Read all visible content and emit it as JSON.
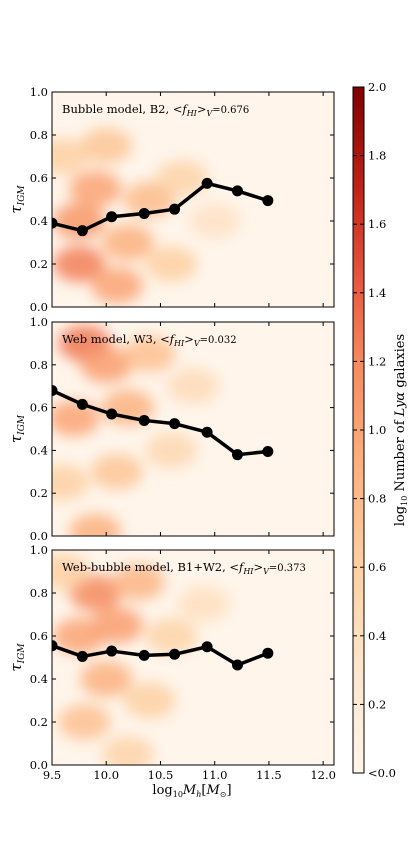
{
  "figure": {
    "xlabel": "log10Mh[M⊙]",
    "colorbar_label": "log10 Number of Lyα galaxies",
    "colorbar_ticks": [
      "<0.0",
      "0.2",
      "0.4",
      "0.6",
      "0.8",
      "1.0",
      "1.2",
      "1.4",
      "1.6",
      "1.8",
      "2.0"
    ],
    "colors": {
      "line": "#000000",
      "cmap_low": "#fff5eb",
      "cmap_mid": "#f4a26a",
      "cmap_high": "#7f0000"
    }
  },
  "chart_data": [
    {
      "type": "line",
      "panel": "top",
      "annotation": {
        "prefix": "Bubble model, B2,  <",
        "f": "f",
        "sub": "HI",
        "mid": ">",
        "subV": "V",
        "value": "=0.676"
      },
      "ylabel": "τIGM",
      "xlim": [
        9.5,
        12.1
      ],
      "ylim": [
        0.0,
        1.0
      ],
      "x_ticks": [
        9.5,
        10.0,
        10.5,
        11.0,
        11.5,
        12.0
      ],
      "y_ticks": [
        "0.0",
        "0.2",
        "0.4",
        "0.6",
        "0.8",
        "1.0"
      ],
      "x": [
        9.5,
        9.78,
        10.05,
        10.35,
        10.63,
        10.93,
        11.21,
        11.49
      ],
      "y": [
        0.39,
        0.355,
        0.42,
        0.435,
        0.455,
        0.575,
        0.54,
        0.495
      ],
      "heatmap": "density-background",
      "blobs": [
        {
          "x": 9.75,
          "y": 0.2,
          "v": 1.25
        },
        {
          "x": 9.75,
          "y": 0.4,
          "v": 1.1
        },
        {
          "x": 9.9,
          "y": 0.55,
          "v": 1.0
        },
        {
          "x": 10.1,
          "y": 0.1,
          "v": 1.0
        },
        {
          "x": 10.2,
          "y": 0.3,
          "v": 0.9
        },
        {
          "x": 10.4,
          "y": 0.5,
          "v": 0.8
        },
        {
          "x": 10.0,
          "y": 0.75,
          "v": 0.7
        },
        {
          "x": 10.6,
          "y": 0.2,
          "v": 0.6
        },
        {
          "x": 10.7,
          "y": 0.6,
          "v": 0.55
        },
        {
          "x": 11.0,
          "y": 0.4,
          "v": 0.35
        },
        {
          "x": 9.6,
          "y": 0.7,
          "v": 0.6
        }
      ]
    },
    {
      "type": "line",
      "panel": "middle",
      "annotation": {
        "prefix": "Web model, W3,  <",
        "f": "f",
        "sub": "HI",
        "mid": ">",
        "subV": "V",
        "value": "=0.032"
      },
      "ylabel": "τIGM",
      "xlim": [
        9.5,
        12.1
      ],
      "ylim": [
        0.0,
        1.0
      ],
      "x_ticks": [
        9.5,
        10.0,
        10.5,
        11.0,
        11.5,
        12.0
      ],
      "y_ticks": [
        "0.0",
        "0.2",
        "0.4",
        "0.6",
        "0.8",
        "1.0"
      ],
      "x": [
        9.5,
        9.78,
        10.05,
        10.35,
        10.63,
        10.93,
        11.21,
        11.49
      ],
      "y": [
        0.68,
        0.615,
        0.57,
        0.54,
        0.525,
        0.485,
        0.38,
        0.395
      ],
      "heatmap": "density-background",
      "blobs": [
        {
          "x": 9.8,
          "y": 0.9,
          "v": 1.3
        },
        {
          "x": 10.0,
          "y": 0.8,
          "v": 1.05
        },
        {
          "x": 9.7,
          "y": 0.55,
          "v": 1.0
        },
        {
          "x": 10.2,
          "y": 0.6,
          "v": 0.9
        },
        {
          "x": 10.4,
          "y": 0.85,
          "v": 0.75
        },
        {
          "x": 10.1,
          "y": 0.3,
          "v": 0.7
        },
        {
          "x": 9.9,
          "y": 0.02,
          "v": 0.9
        },
        {
          "x": 10.6,
          "y": 0.4,
          "v": 0.5
        },
        {
          "x": 10.8,
          "y": 0.7,
          "v": 0.45
        },
        {
          "x": 9.6,
          "y": 0.25,
          "v": 0.6
        }
      ]
    },
    {
      "type": "line",
      "panel": "bottom",
      "annotation": {
        "prefix": "Web-bubble model, B1+W2,  <",
        "f": "f",
        "sub": "HI",
        "mid": ">",
        "subV": "V",
        "value": "=0.373"
      },
      "ylabel": "τIGM",
      "xlim": [
        9.5,
        12.1
      ],
      "ylim": [
        0.0,
        1.0
      ],
      "x_ticks": [
        9.5,
        10.0,
        10.5,
        11.0,
        11.5,
        12.0
      ],
      "x_tick_labels": [
        "9.5",
        "10.0",
        "10.5",
        "11.0",
        "11.5",
        "12.0"
      ],
      "y_ticks": [
        "0.0",
        "0.2",
        "0.4",
        "0.6",
        "0.8",
        "1.0"
      ],
      "x": [
        9.5,
        9.78,
        10.05,
        10.35,
        10.63,
        10.93,
        11.21,
        11.49
      ],
      "y": [
        0.555,
        0.505,
        0.53,
        0.51,
        0.515,
        0.55,
        0.465,
        0.52
      ],
      "heatmap": "density-background",
      "blobs": [
        {
          "x": 9.9,
          "y": 0.8,
          "v": 1.2
        },
        {
          "x": 10.1,
          "y": 0.65,
          "v": 1.05
        },
        {
          "x": 9.75,
          "y": 0.6,
          "v": 1.0
        },
        {
          "x": 10.0,
          "y": 0.4,
          "v": 0.9
        },
        {
          "x": 10.3,
          "y": 0.85,
          "v": 0.85
        },
        {
          "x": 9.8,
          "y": 0.2,
          "v": 0.75
        },
        {
          "x": 10.4,
          "y": 0.3,
          "v": 0.6
        },
        {
          "x": 10.6,
          "y": 0.6,
          "v": 0.55
        },
        {
          "x": 10.9,
          "y": 0.75,
          "v": 0.4
        },
        {
          "x": 9.6,
          "y": 0.9,
          "v": 0.6
        },
        {
          "x": 10.2,
          "y": 0.05,
          "v": 0.55
        }
      ]
    }
  ]
}
